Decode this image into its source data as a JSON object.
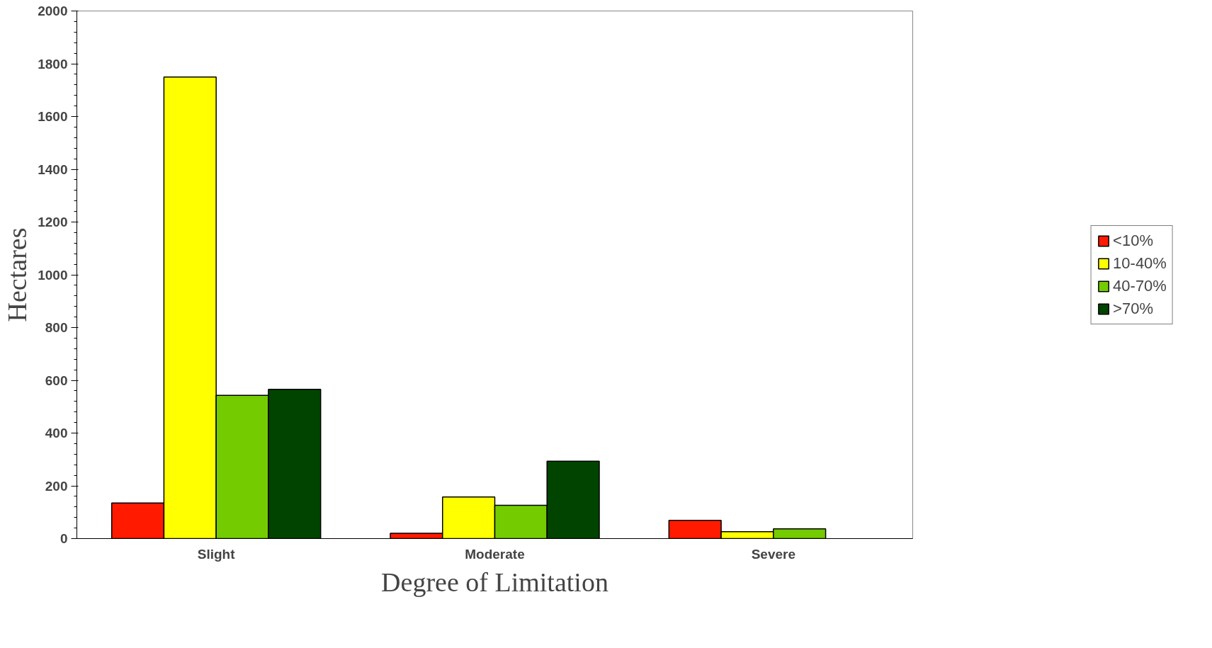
{
  "chart_data": {
    "type": "bar",
    "xlabel": "Degree of Limitation",
    "ylabel": "Hectares",
    "categories": [
      "Slight",
      "Moderate",
      "Severe"
    ],
    "series": [
      {
        "name": "<10%",
        "color": "#ff1a00",
        "values": [
          135,
          20,
          69
        ]
      },
      {
        "name": "10-40%",
        "color": "#ffff00",
        "values": [
          1750,
          158,
          26
        ]
      },
      {
        "name": "40-70%",
        "color": "#74cc00",
        "values": [
          543,
          126,
          37
        ]
      },
      {
        "name": ">70%",
        "color": "#004400",
        "values": [
          566,
          293,
          null
        ]
      }
    ],
    "ylim": [
      0,
      2000
    ],
    "yticks": [
      0,
      200,
      400,
      600,
      800,
      1000,
      1200,
      1400,
      1600,
      1800,
      2000
    ],
    "legend": "right",
    "grid": false
  }
}
